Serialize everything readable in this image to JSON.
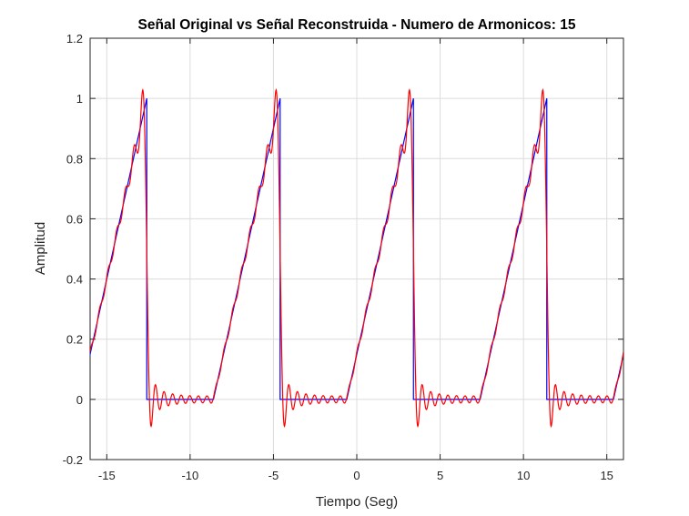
{
  "chart_data": {
    "type": "line",
    "title": "Señal Original vs Señal Reconstruida - Numero de Armonicos: 15",
    "xlabel": "Tiempo (Seg)",
    "ylabel": "Amplitud",
    "xlim": [
      -16,
      16
    ],
    "ylim": [
      -0.2,
      1.2
    ],
    "xticks": [
      -15,
      -10,
      -5,
      0,
      5,
      10,
      15
    ],
    "xtick_labels": [
      "-15",
      "-10",
      "-5",
      "0",
      "5",
      "10",
      "15"
    ],
    "yticks": [
      -0.2,
      0,
      0.2,
      0.4,
      0.6,
      0.8,
      1,
      1.2
    ],
    "ytick_labels": [
      "-0.2",
      "0",
      "0.2",
      "0.4",
      "0.6",
      "0.8",
      "1",
      "1.2"
    ],
    "grid": true,
    "period": 8,
    "harmonics": 15,
    "series": [
      {
        "color": "#0000ff",
        "description": "original periodic signal: ramp from (-0.6, 0) to (3.4, 1) then zero until -0.6+8, repeating every 8 s",
        "points_one_period": [
          {
            "x": -0.6,
            "y": 0
          },
          {
            "x": 3.4,
            "y": 1
          },
          {
            "x": 3.4,
            "y": 0
          },
          {
            "x": 7.4,
            "y": 0
          }
        ]
      },
      {
        "color": "#ff0000",
        "description": "Fourier reconstruction with 15 harmonics of the same periodic signal"
      }
    ]
  }
}
